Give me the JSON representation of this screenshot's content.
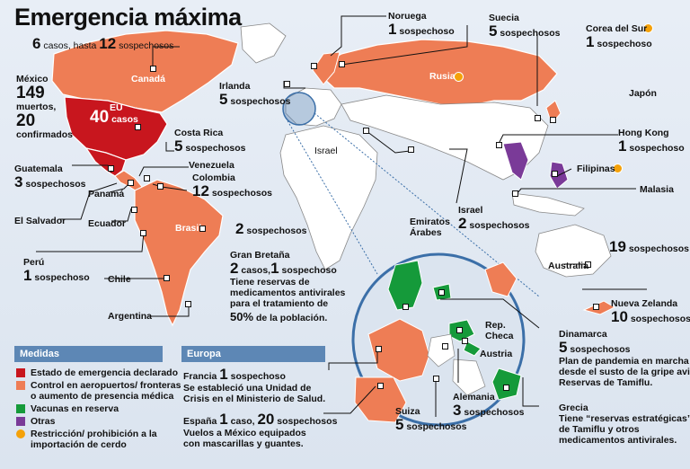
{
  "title": "Emergencia máxima",
  "header": {
    "cases": "6",
    "cases_word": "casos, hasta",
    "suspects": "12",
    "suspects_word": "sospechosos"
  },
  "colors": {
    "emergency": "#c8161e",
    "control": "#ee7d55",
    "vaccine": "#159a3a",
    "other": "#7a3a98",
    "restriction": "#f4a10a",
    "panel": "#5d87b5",
    "land": "#ffffff",
    "sea": "#dbe4ef"
  },
  "map_labels": {
    "canada": "Canadá",
    "eu": "EU",
    "eu_cases_num": "40",
    "eu_cases_word": "casos",
    "brasil": "Brasil",
    "rusia": "Rusia",
    "israel_map": "Israel"
  },
  "mexico": {
    "name": "México",
    "dead_num": "149",
    "dead_word": "muertos,",
    "conf_num": "20",
    "conf_word": "confirmados"
  },
  "countries": {
    "noruega": {
      "name": "Noruega",
      "num": "1",
      "word": "sospechoso"
    },
    "suecia": {
      "name": "Suecia",
      "num": "5",
      "word": "sospechosos"
    },
    "corea": {
      "name": "Corea del Sur",
      "num": "1",
      "word": "sospechoso"
    },
    "irlanda": {
      "name": "Irlanda",
      "num": "5",
      "word": "sospechosos"
    },
    "japon": {
      "name": "Japón"
    },
    "costa_rica": {
      "name": "Costa Rica",
      "num": "5",
      "word": "sospechosos"
    },
    "hong_kong": {
      "name": "Hong Kong",
      "num": "1",
      "word": "sospechoso"
    },
    "guatemala": {
      "name": "Guatemala",
      "num": "3",
      "word": "sospechosos"
    },
    "venezuela": {
      "name": "Venezuela"
    },
    "filipinas": {
      "name": "Filipinas"
    },
    "colombia": {
      "name": "Colombia",
      "num": "12",
      "word": "sospechosos"
    },
    "panama": {
      "name": "Panamá"
    },
    "malasia": {
      "name": "Malasia"
    },
    "el_salvador": {
      "name": "El Salvador"
    },
    "ecuador": {
      "name": "Ecuador"
    },
    "brasil": {
      "num": "2",
      "word": "sospechosos"
    },
    "emiratos": {
      "name1": "Emiratos",
      "name2": "Árabes"
    },
    "israel": {
      "name": "Israel",
      "num": "2",
      "word": "sospechosos"
    },
    "nueva_zelanda_extra": {
      "num": "19",
      "word": "sospechosos"
    },
    "australia": {
      "name": "Australia"
    },
    "peru": {
      "name": "Perú",
      "num": "1",
      "word": "sospechoso"
    },
    "chile": {
      "name": "Chile"
    },
    "argentina": {
      "name": "Argentina"
    },
    "nueva_zelanda": {
      "name": "Nueva Zelanda",
      "num": "10",
      "word": "sospechosos"
    }
  },
  "gran_bretana": {
    "name": "Gran Bretaña",
    "cases_num": "2",
    "cases_word": "casos,",
    "susp_num": "1",
    "susp_word": "sospechoso",
    "l1": "Tiene reservas de",
    "l2": "medicamentos antivirales",
    "l3": "para el tratamiento de",
    "pct": "50%",
    "l4": "de la población."
  },
  "europe_inset": {
    "rep_checa1": "Rep.",
    "rep_checa2": "Checa",
    "austria": "Austria",
    "alemania": "Alemania",
    "alemania_num": "3",
    "alemania_word": "sospechosos",
    "suiza": "Suiza",
    "suiza_num": "5",
    "suiza_word": "sospechosos"
  },
  "dinamarca": {
    "name": "Dinamarca",
    "num": "5",
    "word": "sospechosos",
    "l1": "Plan de pandemia en marcha",
    "l2": "desde el susto de la gripe aviar.",
    "l3": "Reservas de Tamiflu."
  },
  "grecia": {
    "name": "Grecia",
    "l1": "Tiene “reservas estratégicas”",
    "l2": "de Tamiflu  y otros",
    "l3": "medicamentos antivirales."
  },
  "legend": {
    "title": "Medidas",
    "items": [
      "Estado de emergencia declarado",
      "Control en aeropuertos/ fronteras",
      "o aumento de presencia médica",
      "Vacunas en reserva",
      "Otras",
      "Restricción/ prohibición a la",
      "importación de cerdo"
    ]
  },
  "europa": {
    "title": "Europa",
    "francia": {
      "name": "Francia",
      "num": "1",
      "word": "sospechoso",
      "l1": "Se estableció una Unidad de",
      "l2": "Crisis en el Ministerio de Salud."
    },
    "espana": {
      "name": "España",
      "num1": "1",
      "w1": "caso,",
      "num2": "20",
      "w2": "sospechosos",
      "l1": "Vuelos a México equipados",
      "l2": "con mascarillas y guantes."
    }
  }
}
